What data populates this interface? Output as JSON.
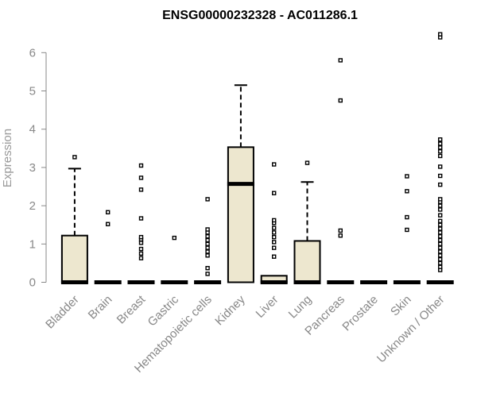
{
  "chart_data": {
    "type": "box",
    "title": "ENSG00000232328 - AC011286.1",
    "xlabel": "",
    "ylabel": "Expression",
    "ylim": [
      0,
      6.6
    ],
    "yticks": [
      0,
      1,
      2,
      3,
      4,
      5,
      6
    ],
    "box_fill": "#ede7cf",
    "categories": [
      "Bladder",
      "Brain",
      "Breast",
      "Gastric",
      "Hematopoietic cells",
      "Kidney",
      "Liver",
      "Lung",
      "Pancreas",
      "Prostate",
      "Skin",
      "Unknown / Other"
    ],
    "boxes": [
      {
        "q1": 0,
        "median": 0,
        "q3": 1.22,
        "whisker_low": 0,
        "whisker_high": 2.97,
        "outliers": [
          3.27
        ]
      },
      {
        "q1": 0,
        "median": 0,
        "q3": 0,
        "whisker_low": 0,
        "whisker_high": 0,
        "outliers": [
          1.52,
          1.83
        ]
      },
      {
        "q1": 0,
        "median": 0,
        "q3": 0,
        "whisker_low": 0,
        "whisker_high": 0,
        "outliers": [
          0.63,
          0.75,
          0.87,
          1.03,
          1.12,
          1.18,
          1.67,
          2.42,
          2.73,
          3.05
        ]
      },
      {
        "q1": 0,
        "median": 0,
        "q3": 0,
        "whisker_low": 0,
        "whisker_high": 0,
        "outliers": [
          1.16
        ]
      },
      {
        "q1": 0,
        "median": 0,
        "q3": 0,
        "whisker_low": 0,
        "whisker_high": 0,
        "outliers": [
          0.22,
          0.37,
          0.7,
          0.8,
          0.9,
          1.0,
          1.1,
          1.2,
          1.3,
          1.38,
          2.17
        ]
      },
      {
        "q1": 0,
        "median": 2.57,
        "q3": 3.53,
        "whisker_low": 0,
        "whisker_high": 5.15,
        "outliers": []
      },
      {
        "q1": 0,
        "median": 0,
        "q3": 0.17,
        "whisker_low": 0,
        "whisker_high": 0.17,
        "outliers": [
          0.67,
          0.9,
          1.05,
          1.18,
          1.3,
          1.42,
          1.55,
          1.62,
          2.33,
          3.08
        ]
      },
      {
        "q1": 0,
        "median": 0,
        "q3": 1.08,
        "whisker_low": 0,
        "whisker_high": 2.62,
        "outliers": [
          3.12
        ]
      },
      {
        "q1": 0,
        "median": 0,
        "q3": 0,
        "whisker_low": 0,
        "whisker_high": 0,
        "outliers": [
          1.22,
          1.35,
          4.75,
          5.8
        ]
      },
      {
        "q1": 0,
        "median": 0,
        "q3": 0,
        "whisker_low": 0,
        "whisker_high": 0,
        "outliers": []
      },
      {
        "q1": 0,
        "median": 0,
        "q3": 0,
        "whisker_low": 0,
        "whisker_high": 0,
        "outliers": [
          1.37,
          1.7,
          2.38,
          2.77
        ]
      },
      {
        "q1": 0,
        "median": 0,
        "q3": 0,
        "whisker_low": 0,
        "whisker_high": 0,
        "outliers": [
          0.32,
          0.4,
          0.5,
          0.6,
          0.7,
          0.8,
          0.9,
          1.0,
          1.1,
          1.2,
          1.3,
          1.4,
          1.5,
          1.6,
          1.75,
          1.9,
          2.0,
          2.1,
          2.17,
          2.55,
          2.78,
          3.02,
          3.3,
          3.42,
          3.52,
          3.62,
          3.73,
          6.4,
          6.48
        ]
      }
    ]
  }
}
